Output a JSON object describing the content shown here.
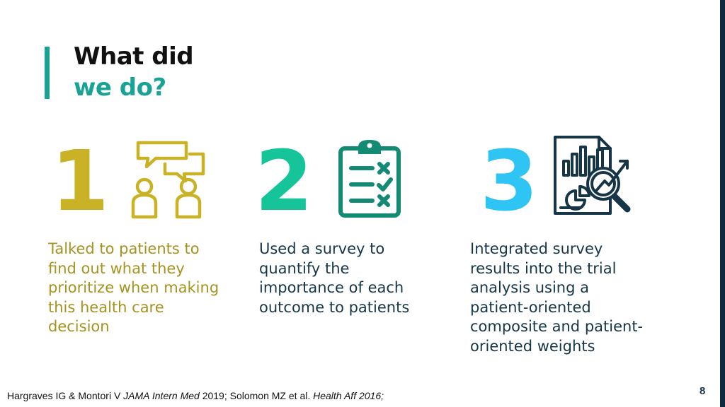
{
  "title": {
    "line1": "What did",
    "line2": "we do?"
  },
  "steps": [
    {
      "number": "1",
      "icon": "conversation-people-icon",
      "lines": [
        "Talked to patients to",
        "find out what they",
        "prioritize when making",
        "this health care",
        "decision"
      ]
    },
    {
      "number": "2",
      "icon": "clipboard-checklist-icon",
      "lines": [
        "Used a survey to",
        "quantify the",
        "importance of each",
        "outcome to patients"
      ]
    },
    {
      "number": "3",
      "icon": "report-analysis-magnifier-icon",
      "lines": [
        "Integrated survey",
        "results into the trial",
        "analysis using a",
        "patient-oriented",
        "composite and patient-",
        "oriented weights"
      ]
    }
  ],
  "footer": {
    "part1": "Hargraves IG & Montori V ",
    "journal1": "JAMA Intern Med",
    "part2": " 2019; Solomon MZ et al. ",
    "journal2": "Health Aff 2016;"
  },
  "page_number": "8",
  "colors": {
    "teal": "#1aa394",
    "gold": "#c9b226",
    "green": "#16c49a",
    "sky": "#2ec5f5",
    "navy": "#163648"
  }
}
